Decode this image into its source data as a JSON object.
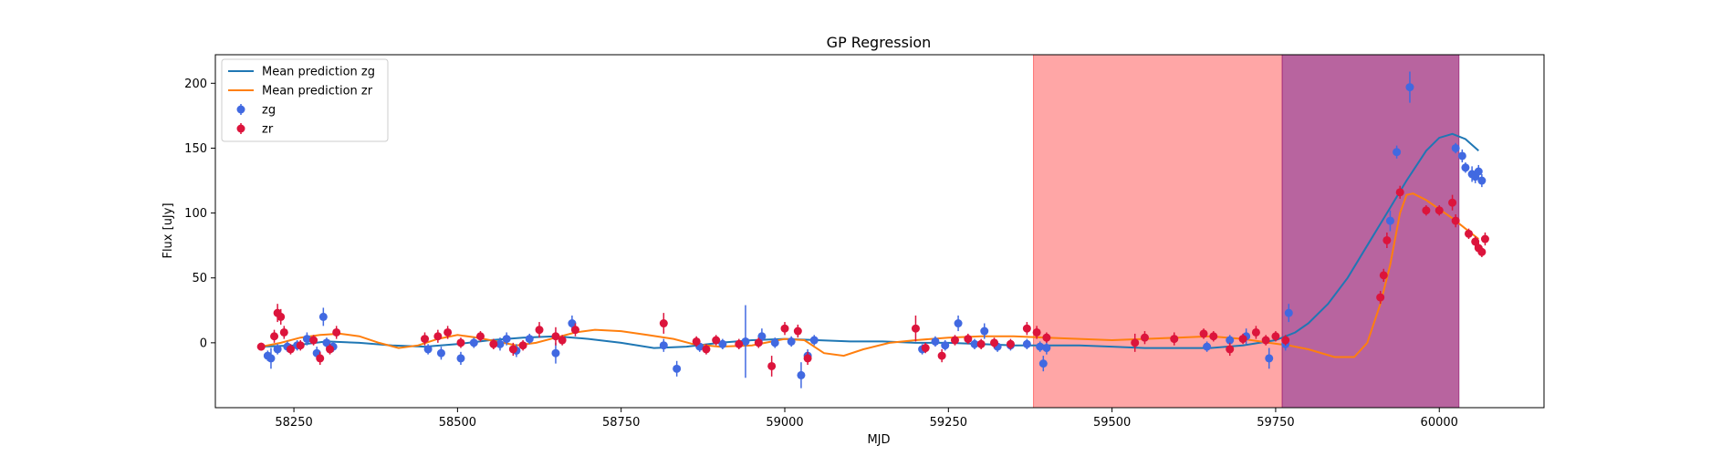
{
  "chart_data": {
    "type": "scatter",
    "title": "GP Regression",
    "xlabel": "MJD",
    "ylabel": "Flux [uJy]",
    "xlim": [
      58130,
      60160
    ],
    "ylim": [
      -50,
      222
    ],
    "xticks": [
      58250,
      58500,
      58750,
      59000,
      59250,
      59500,
      59750,
      60000
    ],
    "yticks": [
      0,
      50,
      100,
      150,
      200
    ],
    "grid": false,
    "legend_position": "top-left",
    "legend": [
      {
        "label": "Mean prediction zg",
        "kind": "line",
        "color": "#1f77b4"
      },
      {
        "label": "Mean prediction zr",
        "kind": "line",
        "color": "#ff7f0e"
      },
      {
        "label": "zg",
        "kind": "point",
        "color": "#4169e1"
      },
      {
        "label": "zr",
        "kind": "point",
        "color": "#dc143c"
      }
    ],
    "shaded_regions": [
      {
        "x_start": 59380,
        "x_end": 59760,
        "color": "#ff6b6b",
        "opacity": 0.6
      },
      {
        "x_start": 59760,
        "x_end": 60030,
        "color": "#a0307f",
        "opacity": 0.75
      }
    ],
    "lines": [
      {
        "name": "Mean prediction zg",
        "color": "#1f77b4",
        "points": [
          [
            58200,
            -3
          ],
          [
            58250,
            -2
          ],
          [
            58300,
            1
          ],
          [
            58350,
            0
          ],
          [
            58400,
            -2
          ],
          [
            58450,
            -3
          ],
          [
            58500,
            -1
          ],
          [
            58550,
            2
          ],
          [
            58600,
            4
          ],
          [
            58650,
            5
          ],
          [
            58700,
            3
          ],
          [
            58750,
            0
          ],
          [
            58800,
            -4
          ],
          [
            58850,
            -3
          ],
          [
            58900,
            0
          ],
          [
            58950,
            2
          ],
          [
            59000,
            3
          ],
          [
            59050,
            2
          ],
          [
            59100,
            1
          ],
          [
            59150,
            1
          ],
          [
            59200,
            0
          ],
          [
            59250,
            0
          ],
          [
            59300,
            -1
          ],
          [
            59350,
            -2
          ],
          [
            59400,
            -2
          ],
          [
            59450,
            -2
          ],
          [
            59500,
            -3
          ],
          [
            59550,
            -4
          ],
          [
            59600,
            -4
          ],
          [
            59650,
            -4
          ],
          [
            59700,
            -2
          ],
          [
            59750,
            2
          ],
          [
            59780,
            8
          ],
          [
            59800,
            15
          ],
          [
            59830,
            30
          ],
          [
            59860,
            50
          ],
          [
            59890,
            75
          ],
          [
            59920,
            100
          ],
          [
            59950,
            125
          ],
          [
            59980,
            148
          ],
          [
            60000,
            158
          ],
          [
            60020,
            161
          ],
          [
            60040,
            157
          ],
          [
            60060,
            148
          ]
        ]
      },
      {
        "name": "Mean prediction zr",
        "color": "#ff7f0e",
        "points": [
          [
            58200,
            -3
          ],
          [
            58230,
            0
          ],
          [
            58260,
            4
          ],
          [
            58290,
            6
          ],
          [
            58320,
            7
          ],
          [
            58350,
            5
          ],
          [
            58380,
            0
          ],
          [
            58410,
            -4
          ],
          [
            58440,
            -2
          ],
          [
            58470,
            3
          ],
          [
            58500,
            6
          ],
          [
            58530,
            4
          ],
          [
            58560,
            1
          ],
          [
            58590,
            -2
          ],
          [
            58620,
            0
          ],
          [
            58650,
            4
          ],
          [
            58680,
            8
          ],
          [
            58710,
            10
          ],
          [
            58750,
            9
          ],
          [
            58790,
            6
          ],
          [
            58830,
            3
          ],
          [
            58860,
            -1
          ],
          [
            58900,
            -3
          ],
          [
            58950,
            -2
          ],
          [
            59000,
            3
          ],
          [
            59030,
            2
          ],
          [
            59060,
            -8
          ],
          [
            59090,
            -10
          ],
          [
            59120,
            -5
          ],
          [
            59160,
            0
          ],
          [
            59200,
            2
          ],
          [
            59250,
            4
          ],
          [
            59300,
            5
          ],
          [
            59350,
            5
          ],
          [
            59400,
            4
          ],
          [
            59450,
            3
          ],
          [
            59500,
            2
          ],
          [
            59550,
            3
          ],
          [
            59600,
            4
          ],
          [
            59650,
            5
          ],
          [
            59700,
            3
          ],
          [
            59740,
            0
          ],
          [
            59770,
            -2
          ],
          [
            59800,
            -5
          ],
          [
            59840,
            -11
          ],
          [
            59870,
            -11
          ],
          [
            59890,
            0
          ],
          [
            59910,
            30
          ],
          [
            59925,
            60
          ],
          [
            59940,
            100
          ],
          [
            59950,
            114
          ],
          [
            59960,
            115
          ],
          [
            59980,
            110
          ],
          [
            60000,
            103
          ],
          [
            60020,
            96
          ],
          [
            60040,
            88
          ],
          [
            60060,
            80
          ]
        ]
      }
    ],
    "series": [
      {
        "name": "zg",
        "color": "#4169e1",
        "points": [
          [
            58210,
            -10,
            4
          ],
          [
            58215,
            -12,
            8
          ],
          [
            58225,
            -5,
            4
          ],
          [
            58240,
            -3,
            4
          ],
          [
            58255,
            -2,
            4
          ],
          [
            58270,
            3,
            5
          ],
          [
            58285,
            -8,
            5
          ],
          [
            58295,
            20,
            7
          ],
          [
            58300,
            0,
            4
          ],
          [
            58310,
            -3,
            4
          ],
          [
            58455,
            -5,
            4
          ],
          [
            58475,
            -8,
            5
          ],
          [
            58505,
            -12,
            5
          ],
          [
            58525,
            0,
            4
          ],
          [
            58565,
            -1,
            5
          ],
          [
            58575,
            3,
            5
          ],
          [
            58590,
            -6,
            5
          ],
          [
            58610,
            3,
            4
          ],
          [
            58650,
            -8,
            8
          ],
          [
            58675,
            15,
            6
          ],
          [
            58815,
            -2,
            5
          ],
          [
            58835,
            -20,
            6
          ],
          [
            58870,
            -3,
            4
          ],
          [
            58905,
            -1,
            4
          ],
          [
            58940,
            1,
            28
          ],
          [
            58965,
            5,
            6
          ],
          [
            58985,
            0,
            4
          ],
          [
            59010,
            1,
            4
          ],
          [
            59025,
            -25,
            10
          ],
          [
            59035,
            -10,
            5
          ],
          [
            59045,
            2,
            4
          ],
          [
            59210,
            -5,
            4
          ],
          [
            59230,
            1,
            4
          ],
          [
            59245,
            -2,
            4
          ],
          [
            59265,
            15,
            6
          ],
          [
            59290,
            -1,
            4
          ],
          [
            59305,
            9,
            6
          ],
          [
            59325,
            -3,
            4
          ],
          [
            59345,
            -2,
            4
          ],
          [
            59370,
            -1,
            4
          ],
          [
            59390,
            -3,
            4
          ],
          [
            59395,
            -16,
            6
          ],
          [
            59400,
            -4,
            5
          ],
          [
            59645,
            -3,
            4
          ],
          [
            59680,
            2,
            4
          ],
          [
            59705,
            5,
            6
          ],
          [
            59740,
            -12,
            8
          ],
          [
            59765,
            -1,
            5
          ],
          [
            59770,
            23,
            7
          ],
          [
            59925,
            94,
            8
          ],
          [
            59935,
            147,
            5
          ],
          [
            59955,
            197,
            12
          ],
          [
            60025,
            150,
            4
          ],
          [
            60035,
            144,
            5
          ],
          [
            60040,
            135,
            4
          ],
          [
            60050,
            130,
            6
          ],
          [
            60055,
            128,
            5
          ],
          [
            60060,
            132,
            5
          ],
          [
            60065,
            125,
            5
          ]
        ]
      },
      {
        "name": "zr",
        "color": "#dc143c",
        "points": [
          [
            58200,
            -3,
            3
          ],
          [
            58220,
            5,
            5
          ],
          [
            58225,
            23,
            7
          ],
          [
            58230,
            20,
            6
          ],
          [
            58235,
            8,
            5
          ],
          [
            58245,
            -5,
            4
          ],
          [
            58260,
            -2,
            4
          ],
          [
            58280,
            2,
            4
          ],
          [
            58290,
            -12,
            5
          ],
          [
            58305,
            -5,
            4
          ],
          [
            58315,
            8,
            5
          ],
          [
            58450,
            3,
            5
          ],
          [
            58470,
            5,
            5
          ],
          [
            58485,
            8,
            5
          ],
          [
            58505,
            0,
            4
          ],
          [
            58535,
            5,
            4
          ],
          [
            58555,
            -1,
            4
          ],
          [
            58585,
            -5,
            5
          ],
          [
            58600,
            -2,
            4
          ],
          [
            58625,
            10,
            6
          ],
          [
            58650,
            5,
            7
          ],
          [
            58660,
            2,
            4
          ],
          [
            58680,
            10,
            5
          ],
          [
            58815,
            15,
            8
          ],
          [
            58865,
            1,
            4
          ],
          [
            58880,
            -5,
            4
          ],
          [
            58895,
            2,
            4
          ],
          [
            58930,
            -1,
            4
          ],
          [
            58960,
            0,
            4
          ],
          [
            58980,
            -18,
            8
          ],
          [
            59000,
            11,
            5
          ],
          [
            59020,
            9,
            5
          ],
          [
            59035,
            -12,
            5
          ],
          [
            59200,
            11,
            10
          ],
          [
            59215,
            -4,
            4
          ],
          [
            59240,
            -10,
            5
          ],
          [
            59260,
            2,
            4
          ],
          [
            59280,
            3,
            4
          ],
          [
            59300,
            -1,
            4
          ],
          [
            59320,
            0,
            4
          ],
          [
            59345,
            -1,
            4
          ],
          [
            59370,
            11,
            5
          ],
          [
            59385,
            8,
            5
          ],
          [
            59400,
            4,
            4
          ],
          [
            59535,
            0,
            7
          ],
          [
            59550,
            4,
            5
          ],
          [
            59595,
            3,
            5
          ],
          [
            59640,
            7,
            4
          ],
          [
            59655,
            5,
            4
          ],
          [
            59680,
            -5,
            5
          ],
          [
            59700,
            3,
            4
          ],
          [
            59720,
            8,
            5
          ],
          [
            59735,
            2,
            4
          ],
          [
            59750,
            5,
            4
          ],
          [
            59765,
            2,
            4
          ],
          [
            59910,
            35,
            5
          ],
          [
            59915,
            52,
            5
          ],
          [
            59920,
            79,
            6
          ],
          [
            59940,
            116,
            5
          ],
          [
            59980,
            102,
            4
          ],
          [
            60000,
            102,
            4
          ],
          [
            60020,
            108,
            6
          ],
          [
            60025,
            94,
            5
          ],
          [
            60045,
            84,
            4
          ],
          [
            60055,
            78,
            4
          ],
          [
            60060,
            73,
            4
          ],
          [
            60065,
            70,
            4
          ],
          [
            60070,
            80,
            5
          ]
        ]
      }
    ]
  }
}
